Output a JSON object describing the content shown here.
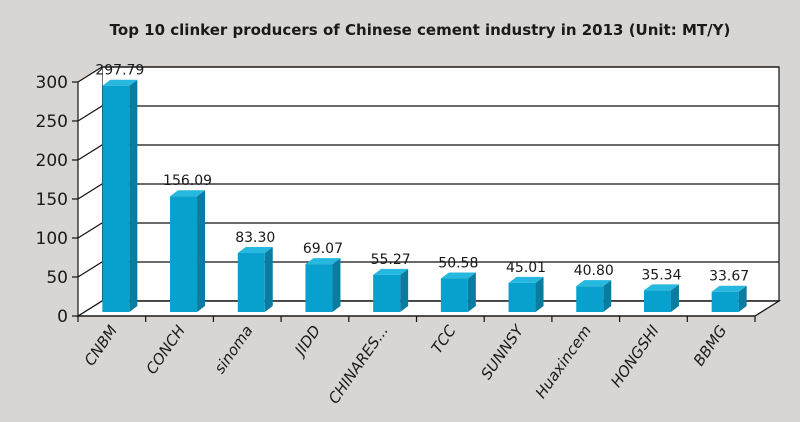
{
  "chart_data": {
    "type": "bar",
    "title": "Top 10 clinker producers of Chinese cement industry in 2013 (Unit: MT/Y)",
    "xlabel": "",
    "ylabel": "",
    "ylim": [
      0,
      300
    ],
    "yticks": [
      0,
      50,
      100,
      150,
      200,
      250,
      300
    ],
    "grid": true,
    "style": "3d",
    "categories": [
      "CNBM",
      "CONCH",
      "sinoma",
      "JIDD",
      "CHINARES...",
      "TCC",
      "SUNNSY",
      "Huaxincem",
      "HONGSHI",
      "BBMG"
    ],
    "values": [
      297.79,
      156.09,
      83.3,
      69.07,
      55.27,
      50.58,
      45.01,
      40.8,
      35.34,
      33.67
    ],
    "data_labels": [
      "297.79",
      "156.09",
      "83.30",
      "69.07",
      "55.27",
      "50.58",
      "45.01",
      "40.80",
      "35.34",
      "33.67"
    ],
    "colors": {
      "bar_front": "#08a0cc",
      "bar_side": "#0a7ca0",
      "bar_top": "#26b8de",
      "background": "#d9d5d2",
      "wall": "#ffffff"
    }
  }
}
